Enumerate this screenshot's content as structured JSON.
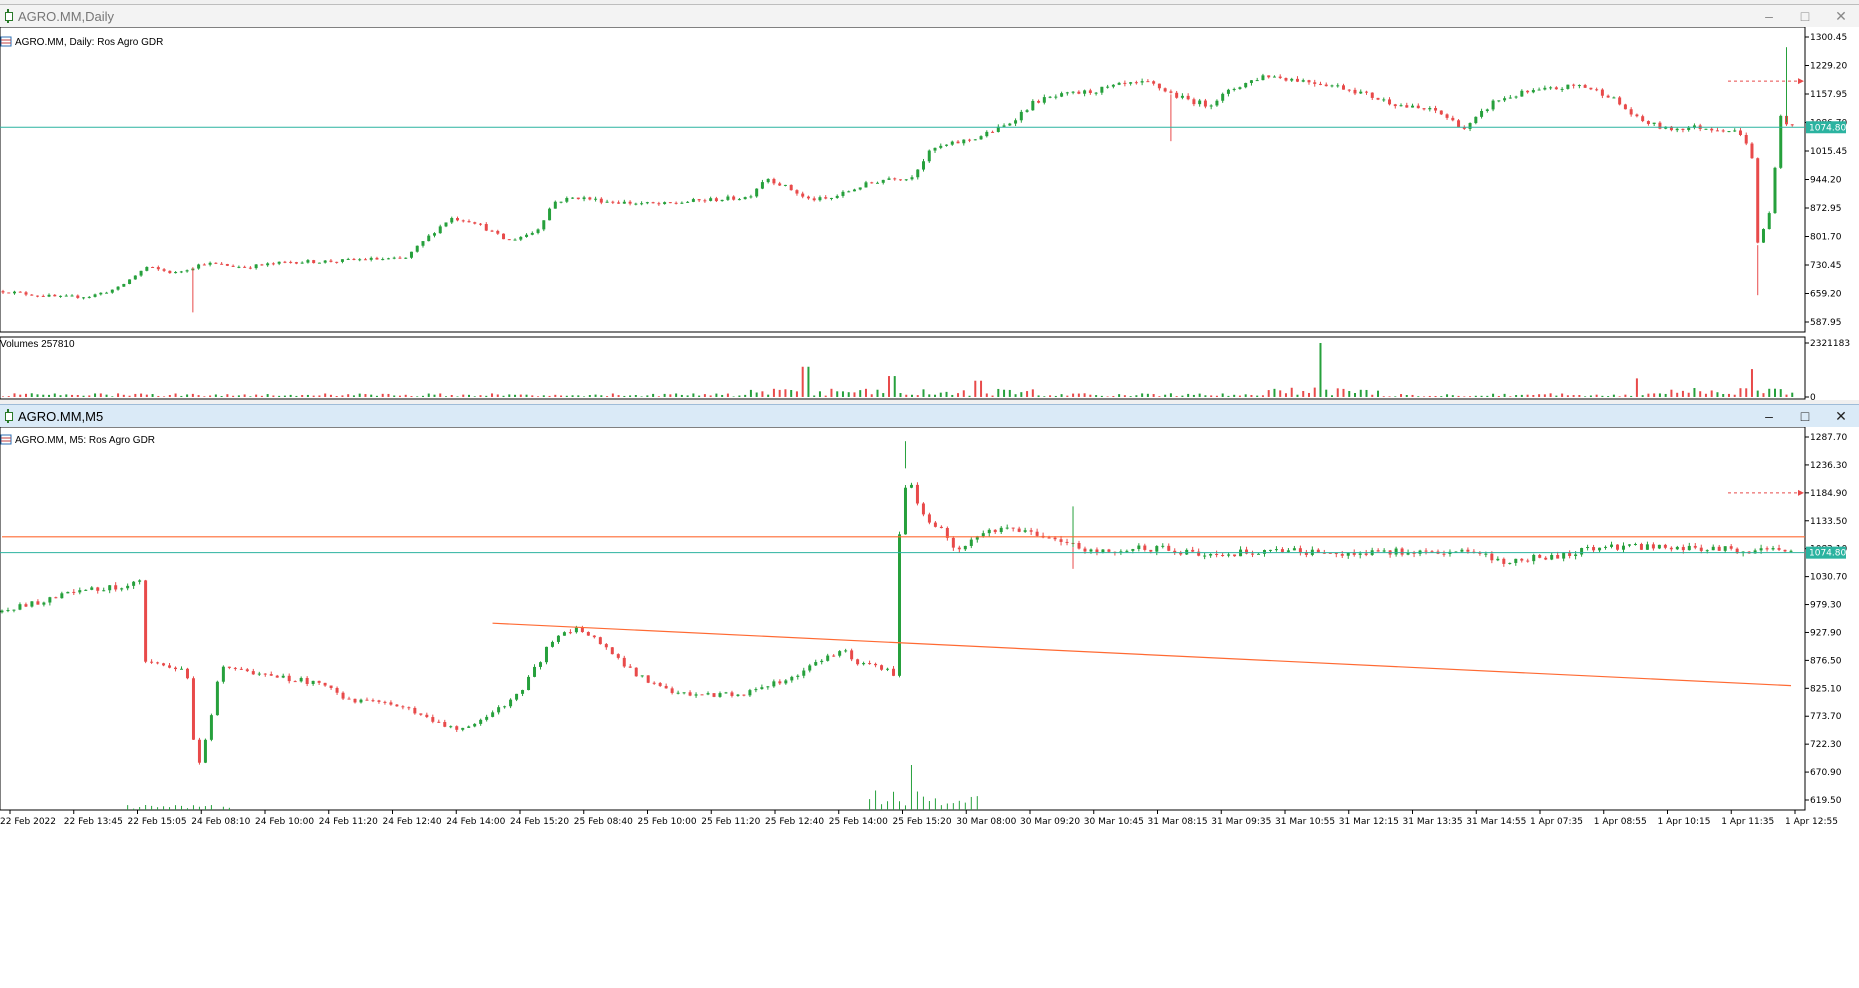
{
  "window1": {
    "title": "AGRO.MM,Daily",
    "symbol_label": "AGRO.MM, Daily:  Ros Agro GDR",
    "volume_label": "Volumes 257810",
    "price_ticks": [
      "1300.45",
      "1229.20",
      "1157.95",
      "1086.70",
      "1015.45",
      "944.20",
      "872.95",
      "801.70",
      "730.45",
      "659.20",
      "587.95"
    ],
    "volume_ticks": [
      "2321183",
      "0"
    ],
    "current_price": "1074.80",
    "buttons": {
      "minimize": "–",
      "maximize": "□",
      "close": "✕"
    }
  },
  "window2": {
    "title": "AGRO.MM,M5",
    "symbol_label": "AGRO.MM, M5:  Ros Agro GDR",
    "price_ticks": [
      "1287.70",
      "1236.30",
      "1184.90",
      "1133.50",
      "1082.10",
      "1030.70",
      "979.30",
      "927.90",
      "876.50",
      "825.10",
      "773.70",
      "722.30",
      "670.90",
      "619.50"
    ],
    "current_price": "1074.80",
    "time_labels": [
      "22 Feb 2022",
      "22 Feb 13:45",
      "22 Feb 15:05",
      "24 Feb 08:10",
      "24 Feb 10:00",
      "24 Feb 11:20",
      "24 Feb 12:40",
      "24 Feb 14:00",
      "24 Feb 15:20",
      "25 Feb 08:40",
      "25 Feb 10:00",
      "25 Feb 11:20",
      "25 Feb 12:40",
      "25 Feb 14:00",
      "25 Feb 15:20",
      "30 Mar 08:00",
      "30 Mar 09:20",
      "30 Mar 10:45",
      "31 Mar 08:15",
      "31 Mar 09:35",
      "31 Mar 10:55",
      "31 Mar 12:15",
      "31 Mar 13:35",
      "31 Mar 14:55",
      "1 Apr 07:35",
      "1 Apr 08:55",
      "1 Apr 10:15",
      "1 Apr 11:35",
      "1 Apr 12:55"
    ],
    "buttons": {
      "minimize": "–",
      "maximize": "□",
      "close": "✕"
    }
  },
  "colors": {
    "bull": "#26a03c",
    "bear": "#e84a4a",
    "price_line": "#2bb3a0",
    "trend_line": "#ff6a33",
    "alert": "#e84a4a"
  },
  "chart_data": [
    {
      "type": "candlestick",
      "title": "AGRO.MM, Daily: Ros Agro GDR",
      "ylim": [
        587.95,
        1300.45
      ],
      "current_price": 1074.8,
      "close_path": [
        [
          0,
          665
        ],
        [
          6,
          655
        ],
        [
          10,
          650
        ],
        [
          15,
          652
        ],
        [
          20,
          672
        ],
        [
          25,
          725
        ],
        [
          30,
          710
        ],
        [
          35,
          735
        ],
        [
          42,
          725
        ],
        [
          50,
          738
        ],
        [
          58,
          740
        ],
        [
          63,
          745
        ],
        [
          70,
          745
        ],
        [
          75,
          812
        ],
        [
          78,
          848
        ],
        [
          82,
          840
        ],
        [
          88,
          790
        ],
        [
          93,
          815
        ],
        [
          96,
          888
        ],
        [
          100,
          900
        ],
        [
          105,
          890
        ],
        [
          110,
          885
        ],
        [
          115,
          882
        ],
        [
          120,
          890
        ],
        [
          130,
          900
        ],
        [
          133,
          950
        ],
        [
          138,
          915
        ],
        [
          140,
          895
        ],
        [
          144,
          895
        ],
        [
          150,
          930
        ],
        [
          155,
          950
        ],
        [
          158,
          945
        ],
        [
          162,
          1020
        ],
        [
          166,
          1035
        ],
        [
          170,
          1050
        ],
        [
          175,
          1080
        ],
        [
          180,
          1140
        ],
        [
          185,
          1155
        ],
        [
          190,
          1165
        ],
        [
          195,
          1180
        ],
        [
          200,
          1185
        ],
        [
          205,
          1150
        ],
        [
          210,
          1130
        ],
        [
          215,
          1175
        ],
        [
          220,
          1205
        ],
        [
          225,
          1195
        ],
        [
          230,
          1185
        ],
        [
          235,
          1170
        ],
        [
          240,
          1145
        ],
        [
          245,
          1125
        ],
        [
          250,
          1115
        ],
        [
          255,
          1070
        ],
        [
          260,
          1140
        ],
        [
          265,
          1160
        ],
        [
          270,
          1170
        ],
        [
          275,
          1180
        ],
        [
          280,
          1155
        ],
        [
          285,
          1095
        ],
        [
          290,
          1070
        ],
        [
          295,
          1075
        ],
        [
          300,
          1070
        ],
        [
          303,
          1060
        ],
        [
          305,
          1000
        ],
        [
          306,
          780
        ],
        [
          308,
          860
        ],
        [
          310,
          1100
        ],
        [
          312,
          1075
        ]
      ],
      "spikes": [
        [
          33,
          612
        ],
        [
          204,
          1040
        ],
        [
          306,
          655
        ],
        [
          311,
          1275
        ]
      ],
      "volume_ylim": [
        0,
        2321183
      ],
      "volume_spikes": [
        [
          140,
          1300000
        ],
        [
          155,
          900000
        ],
        [
          170,
          700000
        ],
        [
          230,
          2321183
        ],
        [
          285,
          800000
        ],
        [
          305,
          1200000
        ]
      ]
    },
    {
      "type": "candlestick",
      "title": "AGRO.MM, M5: Ros Agro GDR",
      "ylim": [
        619.5,
        1287.7
      ],
      "current_price": 1074.8,
      "close_path": [
        [
          0,
          965
        ],
        [
          8,
          990
        ],
        [
          14,
          1005
        ],
        [
          18,
          1010
        ],
        [
          24,
          1020
        ],
        [
          24.1,
          870
        ],
        [
          32,
          860
        ],
        [
          33,
          745
        ],
        [
          34,
          680
        ],
        [
          36,
          760
        ],
        [
          38,
          870
        ],
        [
          44,
          850
        ],
        [
          55,
          835
        ],
        [
          60,
          805
        ],
        [
          70,
          790
        ],
        [
          76,
          760
        ],
        [
          80,
          750
        ],
        [
          84,
          770
        ],
        [
          90,
          820
        ],
        [
          96,
          925
        ],
        [
          100,
          935
        ],
        [
          104,
          905
        ],
        [
          110,
          850
        ],
        [
          116,
          818
        ],
        [
          120,
          810
        ],
        [
          126,
          815
        ],
        [
          130,
          818
        ],
        [
          136,
          842
        ],
        [
          140,
          865
        ],
        [
          146,
          895
        ],
        [
          148,
          875
        ],
        [
          153,
          860
        ],
        [
          155,
          850
        ],
        [
          155.1,
          1070
        ],
        [
          157,
          1230
        ],
        [
          159,
          1150
        ],
        [
          162,
          1125
        ],
        [
          165,
          1082
        ],
        [
          170,
          1110
        ],
        [
          175,
          1120
        ],
        [
          182,
          1105
        ],
        [
          186,
          1085
        ],
        [
          190,
          1080
        ],
        [
          200,
          1082
        ],
        [
          210,
          1072
        ],
        [
          220,
          1078
        ],
        [
          230,
          1075
        ],
        [
          250,
          1078
        ],
        [
          256,
          1070
        ],
        [
          260,
          1060
        ],
        [
          270,
          1070
        ],
        [
          275,
          1082
        ],
        [
          280,
          1086
        ],
        [
          290,
          1084
        ],
        [
          300,
          1080
        ],
        [
          310,
          1076
        ]
      ],
      "spikes": [
        [
          157,
          1280
        ],
        [
          186,
          1045
        ],
        [
          186,
          1160
        ]
      ],
      "trend_lines": [
        {
          "from": [
            85,
            945
          ],
          "to": [
            310,
            830
          ]
        },
        {
          "from": [
            0,
            1104
          ],
          "to": [
            310,
            1104
          ]
        }
      ],
      "alert_level": 1184.9
    }
  ]
}
